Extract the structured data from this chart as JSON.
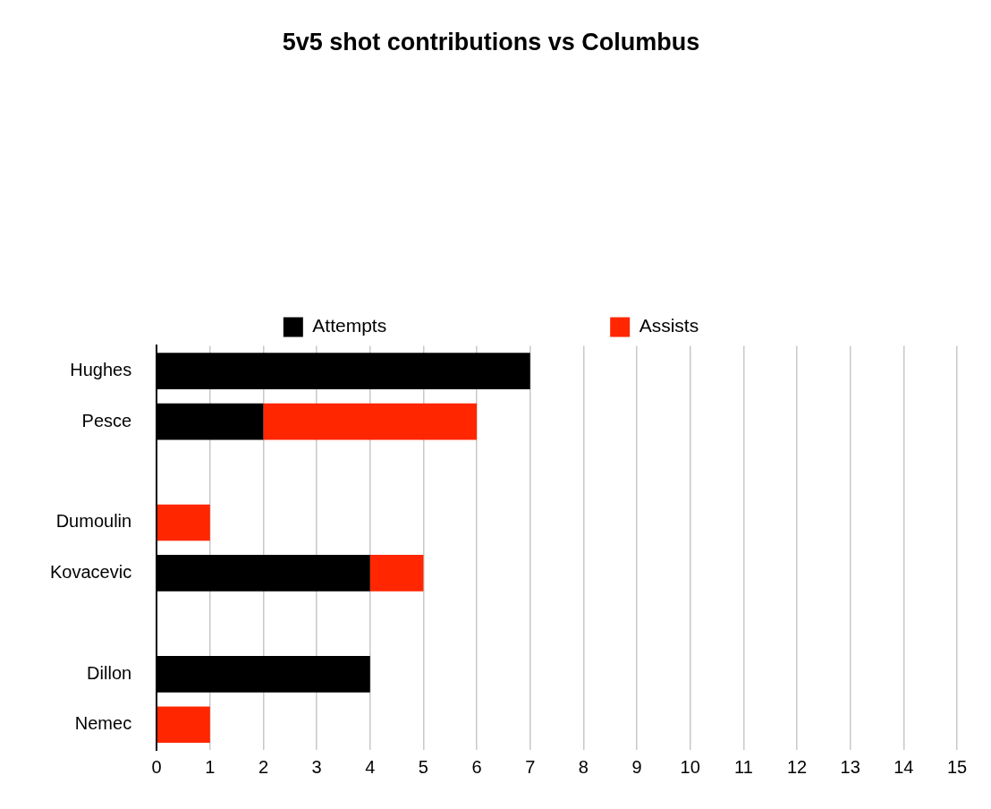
{
  "chart_data": {
    "type": "bar",
    "title": "5v5 shot contributions vs Columbus",
    "orientation": "horizontal",
    "stacked": true,
    "categories": [
      "Hughes",
      "Pesce",
      null,
      "Dumoulin",
      "Kovacevic",
      null,
      "Dillon",
      "Nemec"
    ],
    "series": [
      {
        "name": "Attempts",
        "color": "#000000",
        "values": [
          7,
          2,
          null,
          0,
          4,
          null,
          4,
          0
        ]
      },
      {
        "name": "Assists",
        "color": "#ff2600",
        "values": [
          0,
          4,
          null,
          1,
          1,
          null,
          0,
          1
        ]
      }
    ],
    "xlim": [
      0,
      15
    ],
    "xticks": [
      0,
      1,
      2,
      3,
      4,
      5,
      6,
      7,
      8,
      9,
      10,
      11,
      12,
      13,
      14,
      15
    ],
    "grid": "x",
    "legend": "top"
  }
}
